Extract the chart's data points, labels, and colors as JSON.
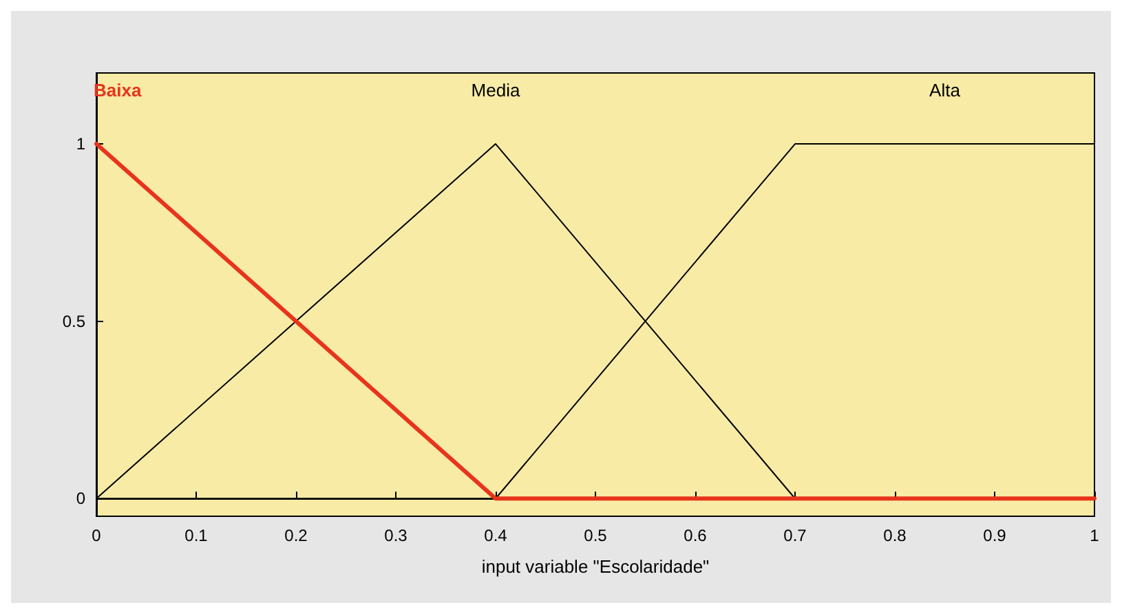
{
  "chart_data": {
    "type": "line",
    "xlabel": "input variable \"Escolaridade\"",
    "x": [
      0,
      0.4,
      0.7,
      1
    ],
    "series": [
      {
        "name": "Baixa",
        "color": "#e8341c",
        "values": [
          1,
          0,
          0,
          0
        ]
      },
      {
        "name": "Media",
        "color": "#000000",
        "values": [
          0,
          1,
          0,
          0
        ]
      },
      {
        "name": "Alta",
        "color": "#000000",
        "values": [
          0,
          0,
          1,
          1
        ]
      }
    ],
    "xlim": [
      0,
      1
    ],
    "xticks": [
      0,
      0.1,
      0.2,
      0.3,
      0.4,
      0.5,
      0.6,
      0.7,
      0.8,
      0.9,
      1
    ],
    "ylim": [
      -0.05,
      1.2
    ],
    "yticks": [
      0,
      0.5,
      1
    ],
    "marker": "none",
    "line_style": "solid"
  }
}
